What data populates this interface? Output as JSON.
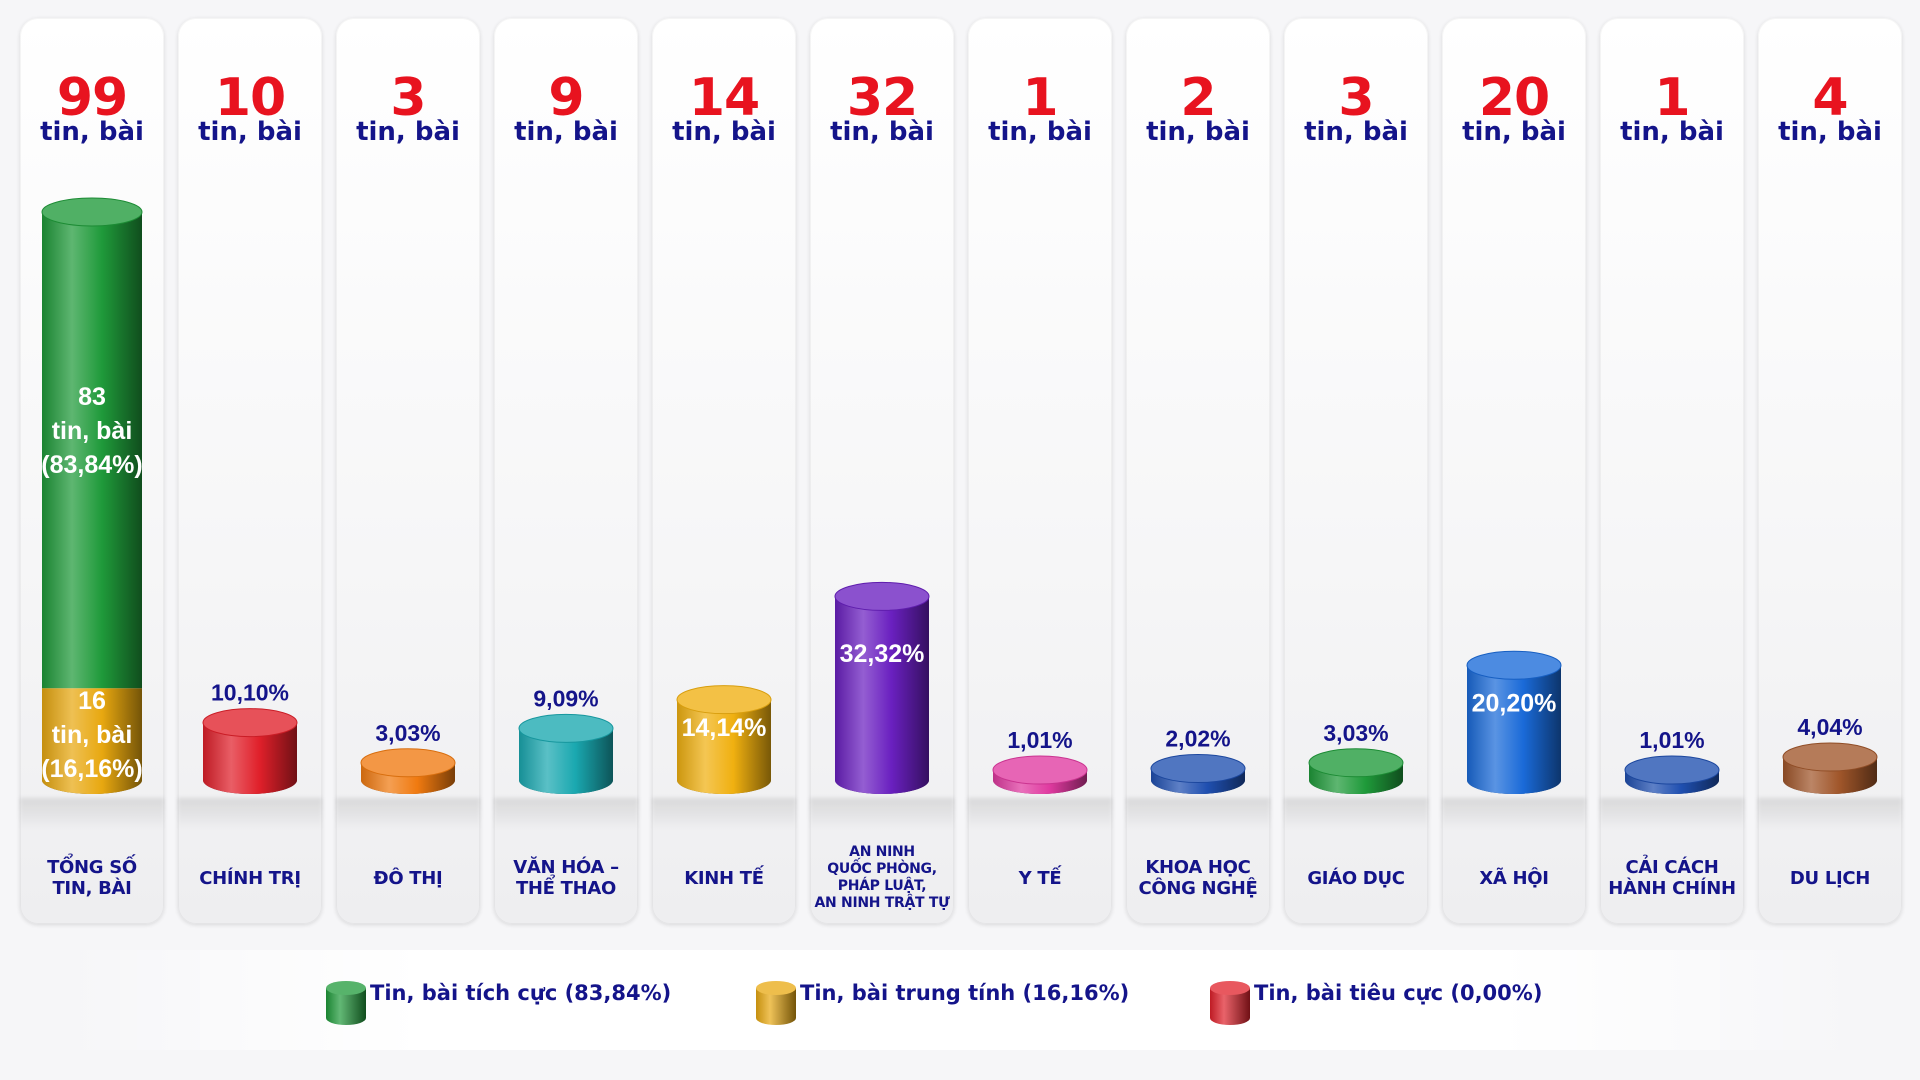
{
  "chart_data": {
    "type": "bar",
    "unit_label": "tin, bài",
    "categories": [
      "TỔNG SỐ\nTIN, BÀI",
      "CHÍNH TRỊ",
      "ĐÔ THỊ",
      "VĂN HÓA –\nTHỂ THAO",
      "KINH TẾ",
      "AN NINH\nQUỐC PHÒNG,\nPHÁP LUẬT,\nAN NINH TRẬT TỰ",
      "Y TẾ",
      "KHOA HỌC\nCÔNG NGHỆ",
      "GIÁO DỤC",
      "XÃ HỘI",
      "CẢI CÁCH\nHÀNH CHÍNH",
      "DU LỊCH"
    ],
    "counts": [
      "99",
      "10",
      "3",
      "9",
      "14",
      "32",
      "1",
      "2",
      "3",
      "20",
      "1",
      "4"
    ],
    "values": [
      99,
      10,
      3,
      9,
      14,
      32,
      1,
      2,
      3,
      20,
      1,
      4
    ],
    "percent_labels": [
      "",
      "10,10%",
      "3,03%",
      "9,09%",
      "14,14%",
      "32,32%",
      "1,01%",
      "2,02%",
      "3,03%",
      "20,20%",
      "1,01%",
      "4,04%"
    ],
    "bar_colors": [
      "#1f9a3a",
      "#e0202a",
      "#f07a10",
      "#1aa8b0",
      "#f0b010",
      "#6a20c0",
      "#e03aa0",
      "#1f4fb0",
      "#1f9a3a",
      "#1a6ad8",
      "#1f4fb0",
      "#a0562a"
    ],
    "total_breakdown": [
      {
        "name": "Tin, bài tích cực",
        "value": 83,
        "line1": "83",
        "line2": "tin, bài",
        "line3": "(83,84%)",
        "color": "#1f9a3a"
      },
      {
        "name": "Tin, bài trung tính",
        "value": 16,
        "line1": "16",
        "line2": "tin, bài",
        "line3": "(16,16%)",
        "color": "#e8a810"
      }
    ],
    "ylim": [
      0,
      99
    ],
    "legend": [
      {
        "label": "Tin, bài tích cực (83,84%)",
        "color": "#1f9a3a"
      },
      {
        "label": "Tin, bài trung tính (16,16%)",
        "color": "#e8a810"
      },
      {
        "label": "Tin, bài tiêu cực (0,00%)",
        "color": "#e0202a"
      }
    ],
    "legend_placement": "bottom",
    "grid": false
  }
}
